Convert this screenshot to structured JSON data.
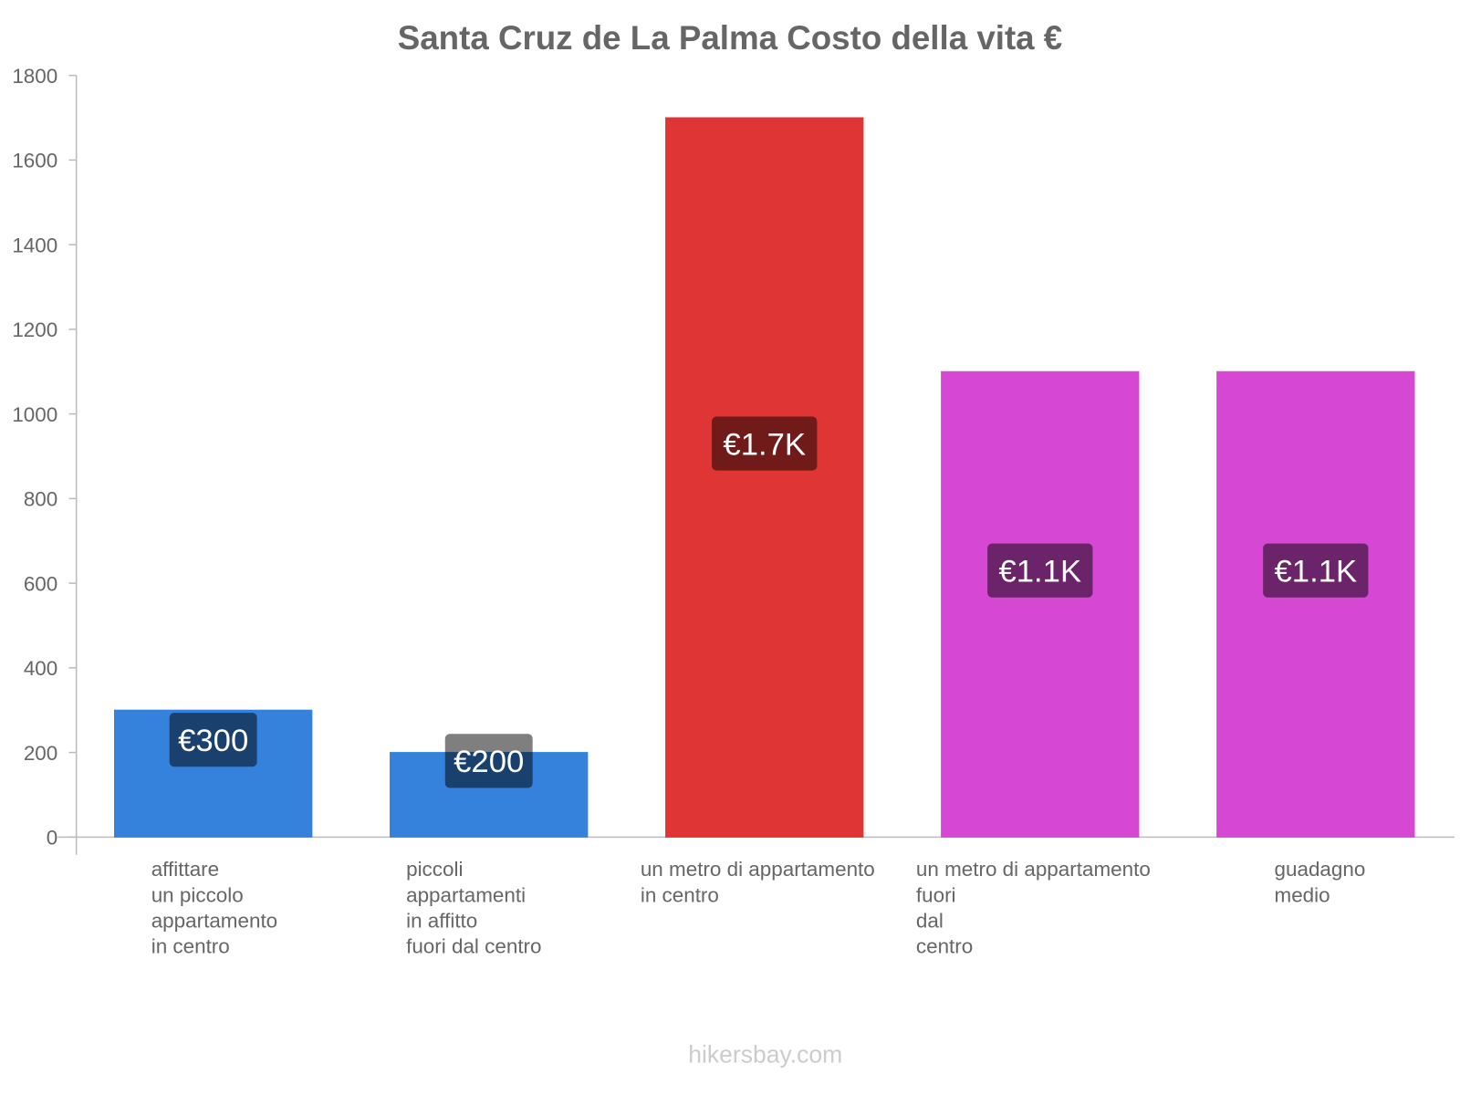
{
  "chart_data": {
    "type": "bar",
    "title": "Santa Cruz de La Palma Costo della vita €",
    "xlabel": "",
    "ylabel": "",
    "ylim": [
      0,
      1800
    ],
    "yticks": [
      "0",
      "200",
      "400",
      "600",
      "800",
      "1000",
      "1200",
      "1400",
      "1600",
      "1800"
    ],
    "categories": [
      [
        "affittare",
        "un piccolo",
        "appartamento",
        "in centro"
      ],
      [
        "piccoli",
        "appartamenti",
        "in affitto",
        "fuori dal centro"
      ],
      [
        "un metro di appartamento",
        "in centro"
      ],
      [
        "un metro di appartamento",
        "fuori",
        "dal",
        "centro"
      ],
      [
        "guadagno",
        "medio"
      ]
    ],
    "values": [
      300,
      200,
      1700,
      1100,
      1100
    ],
    "data_labels": [
      "€300",
      "€200",
      "€1.7K",
      "€1.1K",
      "€1.1K"
    ],
    "colors": [
      "#3582dd",
      "#3582dd",
      "#e03535",
      "#d647d3",
      "#d647d3"
    ],
    "label_bg": [
      "#1c426e",
      "#1c426e",
      "#701a1a",
      "#6b236a",
      "#6b236a"
    ],
    "grid": false
  },
  "watermark": "hikersbay.com"
}
